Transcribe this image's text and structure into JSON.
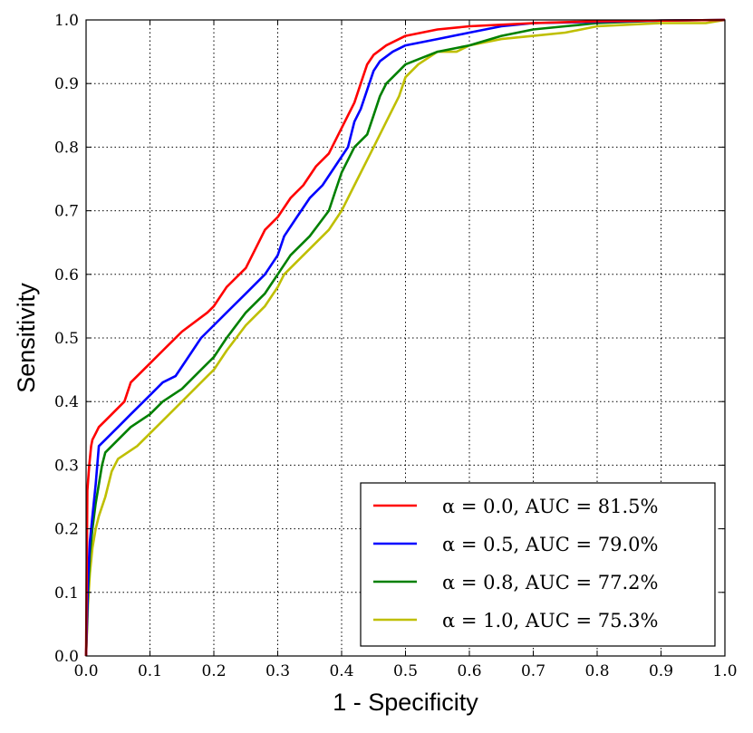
{
  "chart_data": {
    "type": "line",
    "title": "",
    "xlabel": "1 - Specificity",
    "ylabel": "Sensitivity",
    "xlim": [
      0.0,
      1.0
    ],
    "ylim": [
      0.0,
      1.0
    ],
    "grid": true,
    "legend_position": "bottom-right",
    "x_ticks": [
      "0.0",
      "0.1",
      "0.2",
      "0.3",
      "0.4",
      "0.5",
      "0.6",
      "0.7",
      "0.8",
      "0.9",
      "1.0"
    ],
    "y_ticks": [
      "0.0",
      "0.1",
      "0.2",
      "0.3",
      "0.4",
      "0.5",
      "0.6",
      "0.7",
      "0.8",
      "0.9",
      "1.0"
    ],
    "series": [
      {
        "name": "α = 0.0, AUC = 81.5%",
        "color": "#ff0000",
        "x": [
          0,
          0.002,
          0.005,
          0.008,
          0.01,
          0.015,
          0.02,
          0.03,
          0.05,
          0.06,
          0.07,
          0.08,
          0.1,
          0.12,
          0.15,
          0.19,
          0.2,
          0.22,
          0.24,
          0.25,
          0.27,
          0.28,
          0.3,
          0.32,
          0.34,
          0.36,
          0.38,
          0.4,
          0.42,
          0.43,
          0.44,
          0.45,
          0.47,
          0.5,
          0.55,
          0.6,
          0.7,
          0.8,
          0.9,
          1.0
        ],
        "y": [
          0,
          0.26,
          0.3,
          0.33,
          0.34,
          0.35,
          0.36,
          0.37,
          0.39,
          0.4,
          0.43,
          0.44,
          0.46,
          0.48,
          0.51,
          0.54,
          0.55,
          0.58,
          0.6,
          0.61,
          0.65,
          0.67,
          0.69,
          0.72,
          0.74,
          0.77,
          0.79,
          0.83,
          0.87,
          0.9,
          0.93,
          0.945,
          0.96,
          0.975,
          0.985,
          0.99,
          0.995,
          0.998,
          0.999,
          1.0
        ]
      },
      {
        "name": "α = 0.5, AUC = 79.0%",
        "color": "#0000ff",
        "x": [
          0,
          0.003,
          0.006,
          0.01,
          0.015,
          0.02,
          0.03,
          0.05,
          0.07,
          0.08,
          0.1,
          0.12,
          0.14,
          0.16,
          0.18,
          0.2,
          0.22,
          0.25,
          0.28,
          0.3,
          0.31,
          0.33,
          0.35,
          0.37,
          0.39,
          0.41,
          0.42,
          0.43,
          0.44,
          0.45,
          0.46,
          0.48,
          0.5,
          0.55,
          0.6,
          0.65,
          0.7,
          0.8,
          0.9,
          1.0
        ],
        "y": [
          0,
          0.12,
          0.18,
          0.22,
          0.27,
          0.33,
          0.34,
          0.36,
          0.38,
          0.39,
          0.41,
          0.43,
          0.44,
          0.47,
          0.5,
          0.52,
          0.54,
          0.57,
          0.6,
          0.63,
          0.66,
          0.69,
          0.72,
          0.74,
          0.77,
          0.8,
          0.84,
          0.86,
          0.89,
          0.92,
          0.935,
          0.95,
          0.96,
          0.97,
          0.98,
          0.99,
          0.995,
          0.997,
          0.999,
          1.0
        ]
      },
      {
        "name": "α = 0.8, AUC = 77.2%",
        "color": "#008000",
        "x": [
          0,
          0.003,
          0.006,
          0.01,
          0.015,
          0.02,
          0.025,
          0.03,
          0.05,
          0.07,
          0.1,
          0.12,
          0.15,
          0.18,
          0.2,
          0.22,
          0.25,
          0.28,
          0.3,
          0.32,
          0.35,
          0.38,
          0.39,
          0.4,
          0.42,
          0.44,
          0.45,
          0.46,
          0.47,
          0.48,
          0.5,
          0.55,
          0.6,
          0.65,
          0.7,
          0.75,
          0.8,
          0.9,
          1.0
        ],
        "y": [
          0,
          0.1,
          0.16,
          0.2,
          0.24,
          0.27,
          0.3,
          0.32,
          0.34,
          0.36,
          0.38,
          0.4,
          0.42,
          0.45,
          0.47,
          0.5,
          0.54,
          0.57,
          0.6,
          0.63,
          0.66,
          0.7,
          0.73,
          0.76,
          0.8,
          0.82,
          0.85,
          0.88,
          0.9,
          0.91,
          0.93,
          0.95,
          0.96,
          0.975,
          0.985,
          0.99,
          0.995,
          0.999,
          1.0
        ]
      },
      {
        "name": "α = 1.0, AUC = 75.3%",
        "color": "#bfbf00",
        "x": [
          0,
          0.003,
          0.006,
          0.01,
          0.015,
          0.02,
          0.03,
          0.04,
          0.05,
          0.08,
          0.1,
          0.12,
          0.15,
          0.19,
          0.2,
          0.22,
          0.25,
          0.28,
          0.3,
          0.31,
          0.33,
          0.35,
          0.38,
          0.4,
          0.42,
          0.45,
          0.47,
          0.49,
          0.5,
          0.52,
          0.55,
          0.58,
          0.6,
          0.65,
          0.7,
          0.75,
          0.8,
          0.9,
          0.97,
          1.0
        ],
        "y": [
          0,
          0.08,
          0.13,
          0.17,
          0.2,
          0.22,
          0.25,
          0.29,
          0.31,
          0.33,
          0.35,
          0.37,
          0.4,
          0.44,
          0.45,
          0.48,
          0.52,
          0.55,
          0.58,
          0.6,
          0.62,
          0.64,
          0.67,
          0.7,
          0.74,
          0.8,
          0.84,
          0.88,
          0.91,
          0.93,
          0.95,
          0.95,
          0.96,
          0.97,
          0.975,
          0.98,
          0.99,
          0.995,
          0.995,
          1.0
        ]
      }
    ],
    "legend": [
      {
        "label": "α = 0.0, AUC = 81.5%",
        "color": "#ff0000"
      },
      {
        "label": "α = 0.5, AUC = 79.0%",
        "color": "#0000ff"
      },
      {
        "label": "α = 0.8, AUC = 77.2%",
        "color": "#008000"
      },
      {
        "label": "α = 1.0, AUC = 75.3%",
        "color": "#bfbf00"
      }
    ]
  }
}
